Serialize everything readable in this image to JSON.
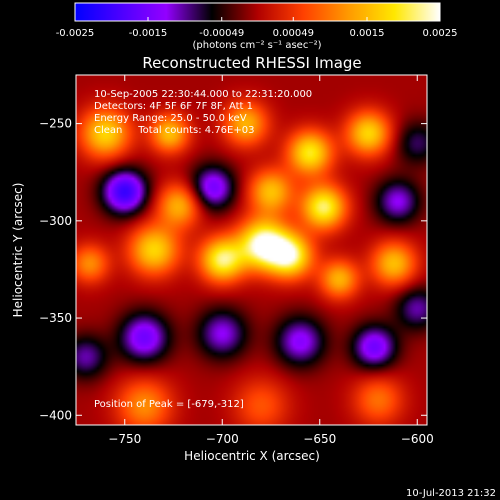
{
  "chart_data": {
    "type": "heatmap",
    "title": "Reconstructed RHESSI Image",
    "xlabel": "Heliocentric X (arcsec)",
    "ylabel": "Heliocentric Y (arcsec)",
    "xlim": [
      -775,
      -595
    ],
    "ylim": [
      -405,
      -225
    ],
    "x_ticks": [
      -750,
      -700,
      -650,
      -600
    ],
    "y_ticks": [
      -250,
      -300,
      -350,
      -400
    ],
    "colorbar": {
      "min": -0.0025,
      "max": 0.0025,
      "ticks": [
        "-0.0025",
        "-0.0015",
        "-0.00049",
        "0.00049",
        "0.0015",
        "0.0025"
      ],
      "unit_label": "(photons cm⁻² s⁻¹ asec⁻²)",
      "colormap": [
        "#0000ff",
        "#4b00ff",
        "#9300ff",
        "#000000",
        "#b00000",
        "#ff4000",
        "#ff9a00",
        "#ffe700",
        "#ffffff"
      ]
    },
    "annotations": [
      "10-Sep-2005 22:30:44.000 to 22:31:20.000",
      "Detectors: 4F 5F 6F 7F 8F, Att 1",
      "Energy Range: 25.0 - 50.0 keV",
      "Clean     Total counts: 4.76E+03"
    ],
    "peak_label": "Position of Peak = [-679,-312]",
    "peak": {
      "x": -679,
      "y": -312
    },
    "sources": [
      {
        "x": -679,
        "y": -312,
        "amp": 0.0026,
        "sigma": 9
      },
      {
        "x": -700,
        "y": -320,
        "amp": 0.0022,
        "sigma": 8
      },
      {
        "x": -665,
        "y": -318,
        "amp": 0.0022,
        "sigma": 8
      },
      {
        "x": -735,
        "y": -315,
        "amp": 0.0018,
        "sigma": 9
      },
      {
        "x": -648,
        "y": -293,
        "amp": 0.0022,
        "sigma": 8
      },
      {
        "x": -675,
        "y": -285,
        "amp": 0.0016,
        "sigma": 8
      },
      {
        "x": -722,
        "y": -292,
        "amp": 0.0015,
        "sigma": 8
      },
      {
        "x": -760,
        "y": -255,
        "amp": 0.0018,
        "sigma": 9
      },
      {
        "x": -727,
        "y": -255,
        "amp": 0.0016,
        "sigma": 7
      },
      {
        "x": -688,
        "y": -250,
        "amp": 0.0015,
        "sigma": 8
      },
      {
        "x": -655,
        "y": -265,
        "amp": 0.002,
        "sigma": 8
      },
      {
        "x": -625,
        "y": -255,
        "amp": 0.0018,
        "sigma": 8
      },
      {
        "x": -612,
        "y": -322,
        "amp": 0.0016,
        "sigma": 8
      },
      {
        "x": -640,
        "y": -330,
        "amp": 0.0015,
        "sigma": 7
      },
      {
        "x": -768,
        "y": -322,
        "amp": 0.0012,
        "sigma": 7
      },
      {
        "x": -740,
        "y": -395,
        "amp": 0.0012,
        "sigma": 10
      },
      {
        "x": -680,
        "y": -395,
        "amp": 0.0008,
        "sigma": 10
      },
      {
        "x": -620,
        "y": -392,
        "amp": 0.001,
        "sigma": 9
      },
      {
        "x": -750,
        "y": -285,
        "amp": -0.002,
        "sigma": 8
      },
      {
        "x": -705,
        "y": -283,
        "amp": -0.0015,
        "sigma": 8
      },
      {
        "x": -610,
        "y": -290,
        "amp": -0.0012,
        "sigma": 8
      },
      {
        "x": -740,
        "y": -360,
        "amp": -0.0015,
        "sigma": 9
      },
      {
        "x": -700,
        "y": -358,
        "amp": -0.0012,
        "sigma": 9
      },
      {
        "x": -660,
        "y": -362,
        "amp": -0.0013,
        "sigma": 9
      },
      {
        "x": -622,
        "y": -365,
        "amp": -0.0015,
        "sigma": 8
      },
      {
        "x": -600,
        "y": -345,
        "amp": -0.001,
        "sigma": 8
      },
      {
        "x": -770,
        "y": -370,
        "amp": -0.001,
        "sigma": 8
      },
      {
        "x": -600,
        "y": -260,
        "amp": -0.0008,
        "sigma": 8
      }
    ]
  },
  "footer": {
    "timestamp": "10-Jul-2013 21:32"
  }
}
